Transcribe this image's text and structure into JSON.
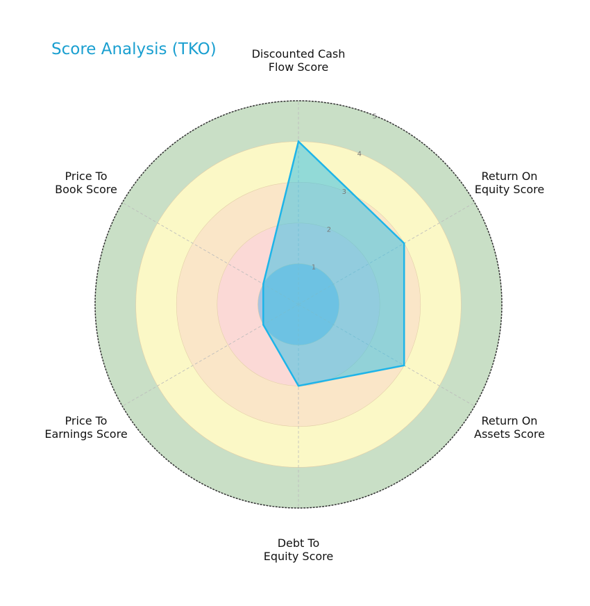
{
  "chart_data": {
    "type": "radar",
    "title": "Score Analysis (TKO)",
    "categories": [
      "Discounted Cash Flow Score",
      "Return On Equity Score",
      "Return On Assets Score",
      "Debt To Equity Score",
      "Price To Earnings Score",
      "Price To Book Score"
    ],
    "labels": [
      [
        "Discounted Cash",
        "Flow Score"
      ],
      [
        "Return On",
        "Equity Score"
      ],
      [
        "Return On",
        "Assets Score"
      ],
      [
        "Debt To",
        "Equity Score"
      ],
      [
        "Price To",
        "Earnings Score"
      ],
      [
        "Price To",
        "Book Score"
      ]
    ],
    "series": [
      {
        "name": "TKO",
        "values": [
          4,
          3,
          3,
          2,
          1,
          1
        ]
      }
    ],
    "rlim": [
      0,
      5
    ],
    "rticks": [
      "1",
      "2",
      "3",
      "4",
      "5"
    ],
    "bands": [
      {
        "from": 0,
        "to": 1,
        "color": "#a9c3df"
      },
      {
        "from": 1,
        "to": 2,
        "color": "#fbd9d6"
      },
      {
        "from": 2,
        "to": 3,
        "color": "#fae6c8"
      },
      {
        "from": 3,
        "to": 4,
        "color": "#fbf8c6"
      },
      {
        "from": 4,
        "to": 5,
        "color": "#c9dfc6"
      }
    ],
    "line_color": "#1eb4e8",
    "fill_color": "#3cc1e6"
  }
}
